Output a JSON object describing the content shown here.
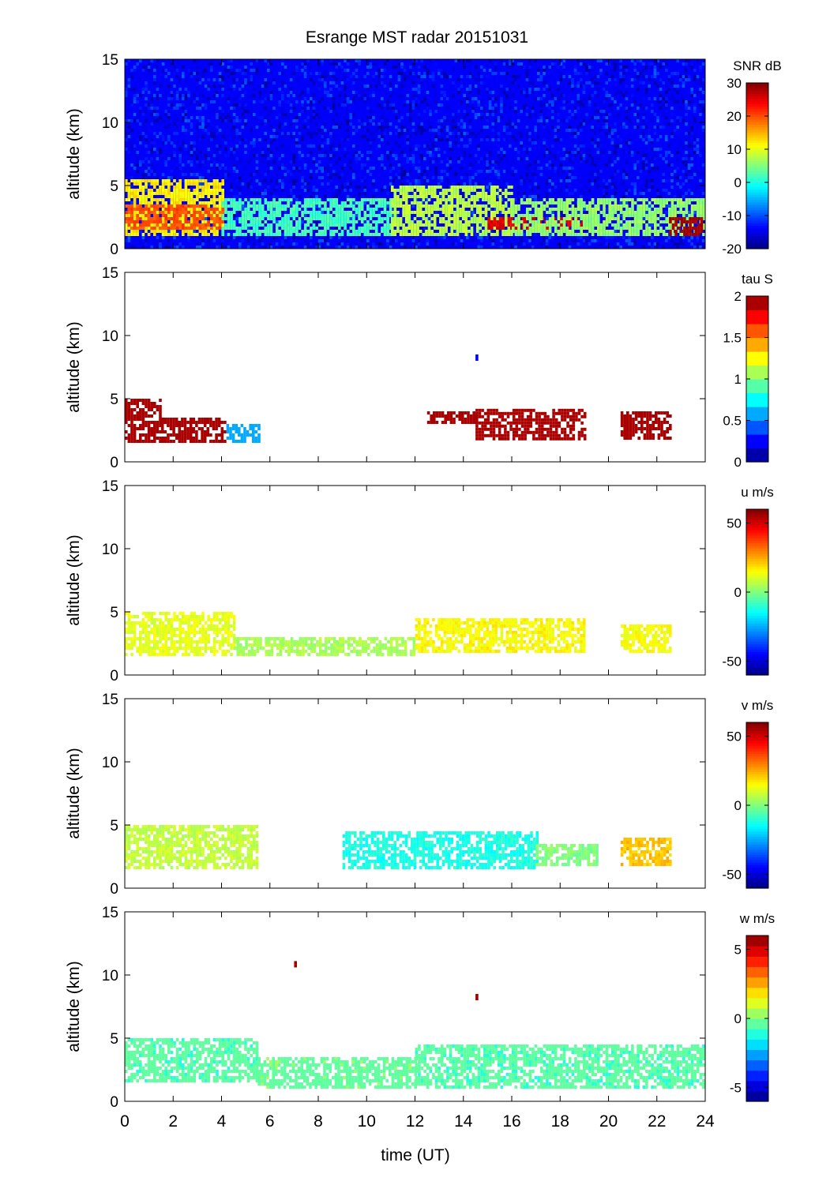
{
  "chart_data": {
    "title": "Esrange MST radar 20151031",
    "type": "heatmap",
    "xlabel": "time (UT)",
    "x_range": [
      0,
      24
    ],
    "x_ticks": [
      "0",
      "2",
      "4",
      "6",
      "8",
      "10",
      "12",
      "14",
      "16",
      "18",
      "20",
      "22",
      "24"
    ],
    "colormap": "jet",
    "panels": [
      {
        "name": "SNR",
        "ylabel": "altitude (km)",
        "y_range": [
          0,
          15
        ],
        "y_ticks": [
          "0",
          "5",
          "10",
          "15"
        ],
        "colorbar": {
          "label": "SNR dB",
          "range": [
            -20,
            30
          ],
          "ticks": [
            "-20",
            "-10",
            "0",
            "10",
            "20",
            "30"
          ],
          "continuous": true
        },
        "features": [
          {
            "start_hour": 0,
            "end_hour": 24,
            "altitude_km": [
              0,
              15
            ],
            "value": -14,
            "note": "background"
          },
          {
            "start_hour": 0,
            "end_hour": 4,
            "altitude_km": [
              1,
              5.5
            ],
            "value": 12
          },
          {
            "start_hour": 0,
            "end_hour": 4,
            "altitude_km": [
              1.5,
              3.5
            ],
            "value": 20
          },
          {
            "start_hour": 4,
            "end_hour": 11,
            "altitude_km": [
              1,
              4
            ],
            "value": 2
          },
          {
            "start_hour": 11,
            "end_hour": 16,
            "altitude_km": [
              1,
              5
            ],
            "value": 8
          },
          {
            "start_hour": 15,
            "end_hour": 19,
            "altitude_km": [
              1.5,
              2.5
            ],
            "value": 25
          },
          {
            "start_hour": 16,
            "end_hour": 24,
            "altitude_km": [
              1,
              4
            ],
            "value": 6
          },
          {
            "start_hour": 22.5,
            "end_hour": 23.8,
            "altitude_km": [
              1,
              2.5
            ],
            "value": 28
          }
        ]
      },
      {
        "name": "tau",
        "ylabel": "altitude (km)",
        "y_range": [
          0,
          15
        ],
        "y_ticks": [
          "0",
          "5",
          "10",
          "15"
        ],
        "colorbar": {
          "label": "tau S",
          "range": [
            0,
            2
          ],
          "ticks": [
            "0",
            "0.5",
            "1",
            "1.5",
            "2"
          ],
          "continuous": false,
          "levels": 12
        },
        "features": [
          {
            "start_hour": 0,
            "end_hour": 1.5,
            "altitude_km": [
              1.5,
              5
            ],
            "value": 2
          },
          {
            "start_hour": 1.5,
            "end_hour": 4.2,
            "altitude_km": [
              1.5,
              3.5
            ],
            "value": 2
          },
          {
            "start_hour": 4.2,
            "end_hour": 5.5,
            "altitude_km": [
              1.5,
              3
            ],
            "value": 0.6
          },
          {
            "start_hour": 12.5,
            "end_hour": 14.5,
            "altitude_km": [
              3,
              4
            ],
            "value": 2
          },
          {
            "start_hour": 14.5,
            "end_hour": 19,
            "altitude_km": [
              1.8,
              4.2
            ],
            "value": 2
          },
          {
            "start_hour": 20.5,
            "end_hour": 22.5,
            "altitude_km": [
              1.8,
              4
            ],
            "value": 2
          },
          {
            "start_hour": 14.5,
            "end_hour": 14.6,
            "altitude_km": [
              8.2,
              8.5
            ],
            "value": 0.2
          }
        ]
      },
      {
        "name": "u",
        "ylabel": "altitude (km)",
        "y_range": [
          0,
          15
        ],
        "y_ticks": [
          "0",
          "5",
          "10",
          "15"
        ],
        "colorbar": {
          "label": "u m/s",
          "range": [
            -60,
            60
          ],
          "ticks": [
            "-50",
            "0",
            "50"
          ],
          "continuous": true
        },
        "features": [
          {
            "start_hour": 0,
            "end_hour": 4.5,
            "altitude_km": [
              1.5,
              5
            ],
            "value": 12
          },
          {
            "start_hour": 4.5,
            "end_hour": 12,
            "altitude_km": [
              1.5,
              3
            ],
            "value": 5
          },
          {
            "start_hour": 12,
            "end_hour": 19,
            "altitude_km": [
              1.8,
              4.5
            ],
            "value": 15
          },
          {
            "start_hour": 20.5,
            "end_hour": 22.5,
            "altitude_km": [
              1.8,
              4
            ],
            "value": 14
          }
        ]
      },
      {
        "name": "v",
        "ylabel": "altitude (km)",
        "y_range": [
          0,
          15
        ],
        "y_ticks": [
          "0",
          "5",
          "10",
          "15"
        ],
        "colorbar": {
          "label": "v m/s",
          "range": [
            -60,
            60
          ],
          "ticks": [
            "-50",
            "0",
            "50"
          ],
          "continuous": true
        },
        "features": [
          {
            "start_hour": 0,
            "end_hour": 5.5,
            "altitude_km": [
              1.5,
              5
            ],
            "value": 8
          },
          {
            "start_hour": 9,
            "end_hour": 17,
            "altitude_km": [
              1.5,
              4.5
            ],
            "value": -12
          },
          {
            "start_hour": 17,
            "end_hour": 19.5,
            "altitude_km": [
              1.8,
              3.5
            ],
            "value": 0
          },
          {
            "start_hour": 20.5,
            "end_hour": 22.5,
            "altitude_km": [
              1.8,
              4
            ],
            "value": 22
          }
        ]
      },
      {
        "name": "w",
        "ylabel": "altitude (km)",
        "y_range": [
          0,
          15
        ],
        "y_ticks": [
          "0",
          "5",
          "10",
          "15"
        ],
        "colorbar": {
          "label": "w m/s",
          "range": [
            -6,
            6
          ],
          "ticks": [
            "-5",
            "0",
            "5"
          ],
          "continuous": false,
          "levels": 16
        },
        "features": [
          {
            "start_hour": 0,
            "end_hour": 5.5,
            "altitude_km": [
              1.5,
              5
            ],
            "value": -0.5
          },
          {
            "start_hour": 5.5,
            "end_hour": 12,
            "altitude_km": [
              1,
              3.5
            ],
            "value": -0.3
          },
          {
            "start_hour": 12,
            "end_hour": 24,
            "altitude_km": [
              1,
              4.5
            ],
            "value": -0.5
          },
          {
            "start_hour": 7,
            "end_hour": 7.1,
            "altitude_km": [
              10.8,
              11.1
            ],
            "value": 6
          },
          {
            "start_hour": 14.5,
            "end_hour": 14.6,
            "altitude_km": [
              8.2,
              8.5
            ],
            "value": 6
          }
        ]
      }
    ]
  }
}
